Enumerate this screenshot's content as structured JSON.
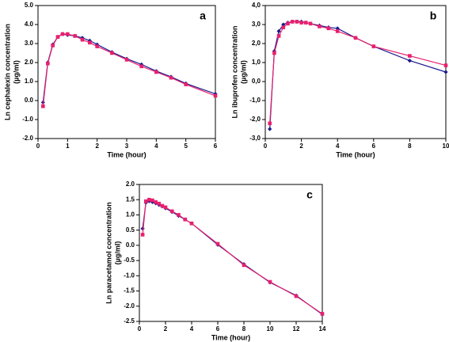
{
  "chart_data": [
    {
      "type": "line",
      "panel_label": "a",
      "x_label": "Time (hour)",
      "y_label": [
        "Ln cephalexin concentration",
        "(µg/ml)"
      ],
      "x": [
        0.17,
        0.33,
        0.5,
        0.67,
        0.83,
        1,
        1.25,
        1.5,
        1.75,
        2,
        2.5,
        3,
        3.5,
        4,
        4.5,
        5,
        6
      ],
      "series": [
        {
          "color": "#1a1a8c",
          "marker": "diamond",
          "values": [
            -0.1,
            2.0,
            2.95,
            3.35,
            3.5,
            3.45,
            3.4,
            3.3,
            3.15,
            2.95,
            2.55,
            2.2,
            1.9,
            1.55,
            1.25,
            0.9,
            0.35
          ]
        },
        {
          "color": "#e8206e",
          "marker": "square",
          "values": [
            -0.3,
            1.95,
            2.9,
            3.35,
            3.5,
            3.5,
            3.4,
            3.2,
            3.05,
            2.85,
            2.5,
            2.15,
            1.8,
            1.5,
            1.2,
            0.85,
            0.25
          ]
        }
      ],
      "xlim": [
        0,
        6
      ],
      "xticks": [
        0,
        1,
        2,
        3,
        4,
        5,
        6
      ],
      "ylim": [
        -2,
        5
      ],
      "yticks": [
        {
          "value": -2,
          "label": "-2.0"
        },
        {
          "value": -1,
          "label": "-1.0"
        },
        {
          "value": 0,
          "label": "0.0"
        },
        {
          "value": 1,
          "label": "1.0"
        },
        {
          "value": 2,
          "label": "2.0"
        },
        {
          "value": 3,
          "label": "3.0"
        },
        {
          "value": 4,
          "label": "4.0"
        },
        {
          "value": 5,
          "label": "5.0"
        }
      ]
    },
    {
      "type": "line",
      "panel_label": "b",
      "x_label": "Time (hour)",
      "y_label": [
        "Ln ibuprofen concentration",
        "(µg/ml)"
      ],
      "x": [
        0.25,
        0.5,
        0.75,
        1,
        1.25,
        1.5,
        1.75,
        2,
        2.25,
        2.5,
        3,
        3.5,
        4,
        5,
        6,
        8,
        10
      ],
      "series": [
        {
          "color": "#1a1a8c",
          "marker": "diamond",
          "values": [
            -2.5,
            1.6,
            2.65,
            3.0,
            3.1,
            3.15,
            3.15,
            3.15,
            3.1,
            3.05,
            2.95,
            2.85,
            2.8,
            2.3,
            1.85,
            1.1,
            0.5
          ]
        },
        {
          "color": "#e8206e",
          "marker": "square",
          "values": [
            -2.2,
            1.5,
            2.4,
            2.85,
            3.05,
            3.15,
            3.15,
            3.1,
            3.1,
            3.05,
            2.9,
            2.8,
            2.65,
            2.3,
            1.85,
            1.35,
            0.85
          ]
        }
      ],
      "xlim": [
        0,
        10
      ],
      "xticks": [
        0,
        2,
        4,
        6,
        8,
        10
      ],
      "ylim": [
        -3,
        4
      ],
      "yticks": [
        {
          "value": -3,
          "label": "-3,0"
        },
        {
          "value": -2,
          "label": "-2,0"
        },
        {
          "value": -1,
          "label": "-1,0"
        },
        {
          "value": 0,
          "label": "0,0"
        },
        {
          "value": 1,
          "label": "1,0"
        },
        {
          "value": 2,
          "label": "2,0"
        },
        {
          "value": 3,
          "label": "3,0"
        },
        {
          "value": 4,
          "label": "4,0"
        }
      ]
    },
    {
      "type": "line",
      "panel_label": "c",
      "x_label": "Time (hour)",
      "y_label": [
        "Ln paracetamol concentration",
        "(µg/ml)"
      ],
      "x": [
        0.25,
        0.5,
        0.75,
        1,
        1.25,
        1.5,
        1.75,
        2,
        2.5,
        3,
        3.5,
        4,
        6,
        8,
        10,
        12,
        14
      ],
      "series": [
        {
          "color": "#1a1a8c",
          "marker": "diamond",
          "values": [
            0.55,
            1.4,
            1.45,
            1.42,
            1.38,
            1.33,
            1.28,
            1.22,
            1.1,
            0.97,
            0.85,
            0.72,
            0.02,
            -0.62,
            -1.22,
            -1.65,
            -2.27
          ]
        },
        {
          "color": "#e8206e",
          "marker": "square",
          "values": [
            0.35,
            1.45,
            1.5,
            1.48,
            1.42,
            1.37,
            1.3,
            1.25,
            1.12,
            1.0,
            0.85,
            0.72,
            0.05,
            -0.65,
            -1.2,
            -1.67,
            -2.25
          ]
        }
      ],
      "xlim": [
        0,
        14
      ],
      "xticks": [
        0,
        2,
        4,
        6,
        8,
        10,
        12,
        14
      ],
      "ylim": [
        -2.5,
        2
      ],
      "yticks": [
        {
          "value": -2.5,
          "label": "-2.5"
        },
        {
          "value": -2,
          "label": "-2.0"
        },
        {
          "value": -1.5,
          "label": "-1.5"
        },
        {
          "value": -1,
          "label": "-1.0"
        },
        {
          "value": -0.5,
          "label": "-0.5"
        },
        {
          "value": 0,
          "label": "0.0"
        },
        {
          "value": 0.5,
          "label": "0.5"
        },
        {
          "value": 1,
          "label": "1.0"
        },
        {
          "value": 1.5,
          "label": "1.5"
        },
        {
          "value": 2,
          "label": "2.0"
        }
      ]
    }
  ]
}
